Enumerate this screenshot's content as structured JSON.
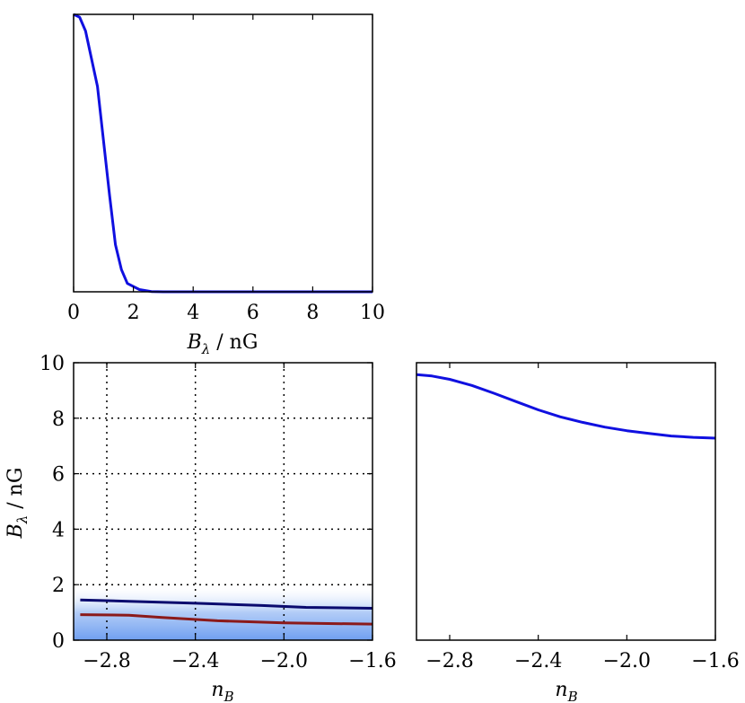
{
  "colors": {
    "blue_line": "#1010e0",
    "navy_line": "#0a0a6e",
    "red_line": "#8b1a1a",
    "fill_base": "#6f9ff0"
  },
  "chart_data": [
    {
      "id": "top-left",
      "type": "line",
      "xlabel_base": "B",
      "xlabel_sub": "λ",
      "xlabel_rest": " / nG",
      "xlim": [
        0,
        10
      ],
      "ylim": [
        0,
        1
      ],
      "grid": false,
      "x_ticks": [
        "0",
        "2",
        "4",
        "6",
        "8",
        "10"
      ],
      "series": [
        {
          "x": [
            0.0,
            0.2,
            0.4,
            0.8,
            1.2,
            1.4,
            1.6,
            1.8,
            2.2,
            2.6,
            3.0,
            4.0,
            6.0,
            8.0,
            10.0
          ],
          "values": [
            1.0,
            0.99,
            0.94,
            0.74,
            0.35,
            0.17,
            0.08,
            0.03,
            0.008,
            0.001,
            0.0,
            0.0,
            0.0,
            0.0,
            0.0
          ]
        }
      ]
    },
    {
      "id": "bottom-left",
      "type": "line",
      "xlabel_base": "n",
      "xlabel_sub": "B",
      "ylabel_base": "B",
      "ylabel_sub": "λ",
      "ylabel_rest": " / nG",
      "xlim": [
        -2.95,
        -1.6
      ],
      "ylim": [
        0,
        10
      ],
      "grid": true,
      "x_ticks": [
        "−2.8",
        "−2.4",
        "−2.0",
        "−1.6"
      ],
      "x_tick_values": [
        -2.8,
        -2.4,
        -2.0,
        -1.6
      ],
      "y_ticks": [
        "0",
        "2",
        "4",
        "6",
        "8",
        "10"
      ],
      "y_tick_values": [
        0,
        2,
        4,
        6,
        8,
        10
      ],
      "series": [
        {
          "x": [
            -2.92,
            -2.7,
            -2.4,
            -2.1,
            -1.9,
            -1.6
          ],
          "values": [
            1.45,
            1.4,
            1.33,
            1.25,
            1.18,
            1.15
          ]
        },
        {
          "x": [
            -2.92,
            -2.7,
            -2.55,
            -2.3,
            -2.0,
            -1.8,
            -1.6
          ],
          "values": [
            0.92,
            0.9,
            0.82,
            0.7,
            0.62,
            0.6,
            0.58
          ]
        }
      ],
      "shaded_region": {
        "from": 0,
        "to": 2
      }
    },
    {
      "id": "bottom-right",
      "type": "line",
      "xlabel_base": "n",
      "xlabel_sub": "B",
      "xlim": [
        -2.95,
        -1.6
      ],
      "ylim": [
        0,
        10
      ],
      "grid": false,
      "x_ticks": [
        "−2.8",
        "−2.4",
        "−2.0",
        "−1.6"
      ],
      "x_tick_values": [
        -2.8,
        -2.4,
        -2.0,
        -1.6
      ],
      "series": [
        {
          "x": [
            -2.95,
            -2.88,
            -2.8,
            -2.7,
            -2.6,
            -2.5,
            -2.4,
            -2.3,
            -2.2,
            -2.1,
            -2.0,
            -1.9,
            -1.8,
            -1.7,
            -1.6
          ],
          "values": [
            9.57,
            9.52,
            9.4,
            9.18,
            8.9,
            8.6,
            8.3,
            8.05,
            7.85,
            7.68,
            7.55,
            7.45,
            7.36,
            7.31,
            7.28
          ]
        }
      ]
    }
  ]
}
